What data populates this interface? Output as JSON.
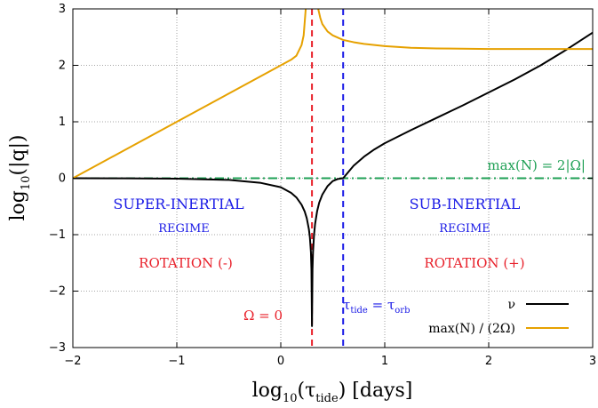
{
  "chart_data": {
    "type": "line",
    "xlabel": {
      "main": "log",
      "sub": "10",
      "open": "(τ",
      "inner_sub": "tide",
      "close": ") [days]"
    },
    "ylabel": {
      "main": "log",
      "sub": "10",
      "rest": "(|q|)"
    },
    "xlim": [
      -2,
      3
    ],
    "ylim": [
      -3,
      3
    ],
    "x_ticks": [
      -2,
      -1,
      0,
      1,
      2,
      3
    ],
    "x_tick_labels": [
      "−2",
      "−1",
      "0",
      "1",
      "2",
      "3"
    ],
    "y_ticks": [
      -3,
      -2,
      -1,
      0,
      1,
      2,
      3
    ],
    "y_tick_labels": [
      "−3",
      "−2",
      "−1",
      "0",
      "1",
      "2",
      "3"
    ],
    "grid": true,
    "legend_position": "bottom-right",
    "series": [
      {
        "name": "ν",
        "color": "#000000",
        "x": [
          -2.0,
          -1.5,
          -1.0,
          -0.5,
          -0.2,
          0.0,
          0.1,
          0.15,
          0.2,
          0.23,
          0.25,
          0.27,
          0.28,
          0.29,
          0.295,
          0.3,
          0.305,
          0.31,
          0.32,
          0.33,
          0.35,
          0.37,
          0.4,
          0.45,
          0.5,
          0.55,
          0.6,
          0.7,
          0.8,
          0.9,
          1.0,
          1.25,
          1.5,
          1.75,
          2.0,
          2.25,
          2.5,
          2.75,
          3.0
        ],
        "y": [
          0.0,
          -0.002,
          -0.007,
          -0.03,
          -0.08,
          -0.16,
          -0.26,
          -0.34,
          -0.47,
          -0.59,
          -0.71,
          -0.9,
          -1.05,
          -1.31,
          -1.62,
          -2.62,
          -1.62,
          -1.31,
          -1.0,
          -0.81,
          -0.58,
          -0.43,
          -0.29,
          -0.14,
          -0.05,
          -0.013,
          0.0,
          0.22,
          0.38,
          0.51,
          0.62,
          0.85,
          1.07,
          1.29,
          1.52,
          1.75,
          2.0,
          2.28,
          2.58
        ]
      },
      {
        "name": "max(N) / (2Ω)",
        "color": "#e6a100",
        "segments": [
          {
            "x": [
              -2.0,
              -1.5,
              -1.0,
              -0.5,
              -0.25,
              0.0,
              0.1,
              0.15,
              0.2,
              0.22,
              0.24
            ],
            "y": [
              0.0,
              0.5,
              1.0,
              1.5,
              1.75,
              2.0,
              2.1,
              2.17,
              2.36,
              2.53,
              3.0
            ]
          },
          {
            "x": [
              0.36,
              0.38,
              0.4,
              0.45,
              0.5,
              0.6,
              0.7,
              0.8,
              1.0,
              1.25,
              1.5,
              2.0,
              2.5,
              3.0
            ],
            "y": [
              3.0,
              2.84,
              2.73,
              2.6,
              2.53,
              2.45,
              2.41,
              2.38,
              2.34,
              2.31,
              2.3,
              2.29,
              2.29,
              2.29
            ]
          }
        ]
      }
    ],
    "reference_lines": [
      {
        "orientation": "vertical",
        "x": 0.3,
        "color": "#e8202a",
        "style": "dashed",
        "label": "Ω = 0"
      },
      {
        "orientation": "vertical",
        "x": 0.6,
        "color": "#1a1ae6",
        "style": "dashed",
        "label_main": "τ",
        "label_sub1": "tide",
        "label_mid": " = τ",
        "label_sub2": "orb"
      },
      {
        "orientation": "horizontal",
        "y": 0.0,
        "color": "#1fa055",
        "style": "dash-dot",
        "label": "max(N) = 2|Ω|"
      }
    ],
    "annotations": {
      "left_regime": [
        "SUPER-INERTIAL",
        "REGIME"
      ],
      "right_regime": [
        "SUB-INERTIAL",
        "REGIME"
      ],
      "left_rotation": "ROTATION (-)",
      "right_rotation": "ROTATION (+)",
      "regime_color": "#1a1ae6",
      "rotation_color": "#e8202a"
    }
  }
}
